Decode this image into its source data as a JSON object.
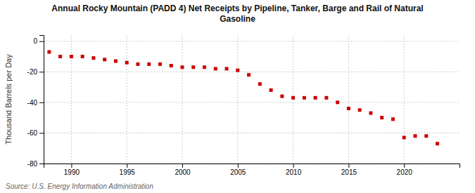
{
  "chart_data": {
    "type": "scatter",
    "title": "Annual Rocky Mountain (PADD 4) Net Receipts by Pipeline, Tanker, Barge and Rail of Natural\nGasoline",
    "ylabel": "Thousand Barrels per Day",
    "annotations": [
      "Source: U.S. Energy Information Administration"
    ],
    "color": "#cc0000",
    "marker": "square",
    "grid": true,
    "xlim": [
      1987.5,
      2025
    ],
    "ylim": [
      -80,
      4
    ],
    "yticks": [
      0,
      -20,
      -40,
      -60,
      -80
    ],
    "xticks": [
      1990,
      1995,
      2000,
      2005,
      2010,
      2015,
      2020
    ],
    "x": [
      1988,
      1989,
      1990,
      1991,
      1992,
      1993,
      1994,
      1995,
      1996,
      1997,
      1998,
      1999,
      2000,
      2001,
      2002,
      2003,
      2004,
      2005,
      2006,
      2007,
      2008,
      2009,
      2010,
      2011,
      2012,
      2013,
      2014,
      2015,
      2016,
      2017,
      2018,
      2019,
      2020,
      2021,
      2022,
      2023
    ],
    "values": [
      -7,
      -10,
      -10,
      -10,
      -11,
      -12,
      -13,
      -14,
      -15,
      -15,
      -15,
      -16,
      -17,
      -17,
      -17,
      -18,
      -18,
      -19,
      -22,
      -28,
      -32,
      -36,
      -37,
      -37,
      -37,
      -37,
      -40,
      -44,
      -45,
      -47,
      -50,
      -51,
      -63,
      -62,
      -62,
      -67
    ]
  }
}
